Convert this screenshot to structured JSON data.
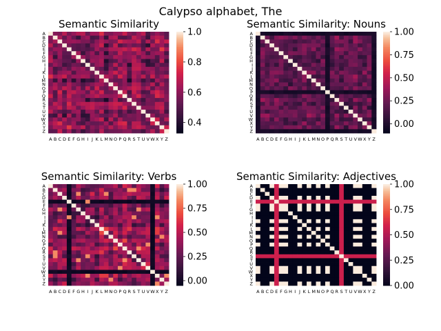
{
  "figure": {
    "suptitle": "Calypso alphabet, The"
  },
  "chart_data": [
    {
      "type": "heatmap",
      "title": "Semantic Similarity",
      "labels": [
        "A",
        "B",
        "C",
        "D",
        "E",
        "F",
        "G",
        "H",
        "I",
        "J",
        "K",
        "L",
        "M",
        "N",
        "O",
        "P",
        "Q",
        "R",
        "S",
        "T",
        "U",
        "V",
        "W",
        "X",
        "Y",
        "Z"
      ],
      "vmin": 0.33,
      "vmax": 1.0,
      "colorbar_ticks": [
        0.4,
        0.6,
        0.8,
        1.0
      ],
      "colorbar_tick_labels": [
        "0.4",
        "0.6",
        "0.8",
        "1.0"
      ],
      "pattern": "dense",
      "diagonal": 1.0
    },
    {
      "type": "heatmap",
      "title": "Semantic Similarity: Nouns",
      "labels": [
        "A",
        "B",
        "C",
        "D",
        "E",
        "F",
        "G",
        "H",
        "I",
        "J",
        "K",
        "L",
        "M",
        "N",
        "O",
        "P",
        "Q",
        "R",
        "S",
        "T",
        "U",
        "V",
        "W",
        "X",
        "Y",
        "Z"
      ],
      "vmin": -0.1,
      "vmax": 1.0,
      "colorbar_ticks": [
        0.0,
        0.25,
        0.5,
        0.75,
        1.0
      ],
      "colorbar_tick_labels": [
        "0.00",
        "0.25",
        "0.50",
        "0.75",
        "1.00"
      ],
      "pattern": "dark",
      "diagonal": 1.0
    },
    {
      "type": "heatmap",
      "title": "Semantic Similarity: Verbs",
      "labels": [
        "A",
        "B",
        "C",
        "D",
        "E",
        "F",
        "G",
        "H",
        "I",
        "J",
        "K",
        "L",
        "M",
        "N",
        "O",
        "P",
        "Q",
        "R",
        "S",
        "T",
        "U",
        "V",
        "W",
        "X",
        "Y",
        "Z"
      ],
      "vmin": -0.05,
      "vmax": 1.0,
      "colorbar_ticks": [
        0.0,
        0.25,
        0.5,
        0.75,
        1.0
      ],
      "colorbar_tick_labels": [
        "0.00",
        "0.25",
        "0.50",
        "0.75",
        "1.00"
      ],
      "pattern": "mid",
      "diagonal": 1.0
    },
    {
      "type": "heatmap",
      "title": "Semantic Similarity: Adjectives",
      "labels": [
        "A",
        "B",
        "C",
        "D",
        "E",
        "F",
        "G",
        "H",
        "I",
        "J",
        "K",
        "L",
        "M",
        "N",
        "O",
        "P",
        "Q",
        "R",
        "S",
        "T",
        "U",
        "V",
        "W",
        "X",
        "Y",
        "Z"
      ],
      "vmin": 0.0,
      "vmax": 1.0,
      "colorbar_ticks": [
        0.0,
        0.25,
        0.5,
        0.75,
        1.0
      ],
      "colorbar_tick_labels": [
        "0.00",
        "0.25",
        "0.50",
        "0.75",
        "1.00"
      ],
      "pattern": "binary",
      "zero_letters": [
        "B",
        "C",
        "H",
        "I",
        "K",
        "M",
        "O",
        "Q",
        "R",
        "T",
        "U",
        "X",
        "Y"
      ],
      "red_letters": [
        "E",
        "S"
      ],
      "diagonal": 1.0
    }
  ]
}
